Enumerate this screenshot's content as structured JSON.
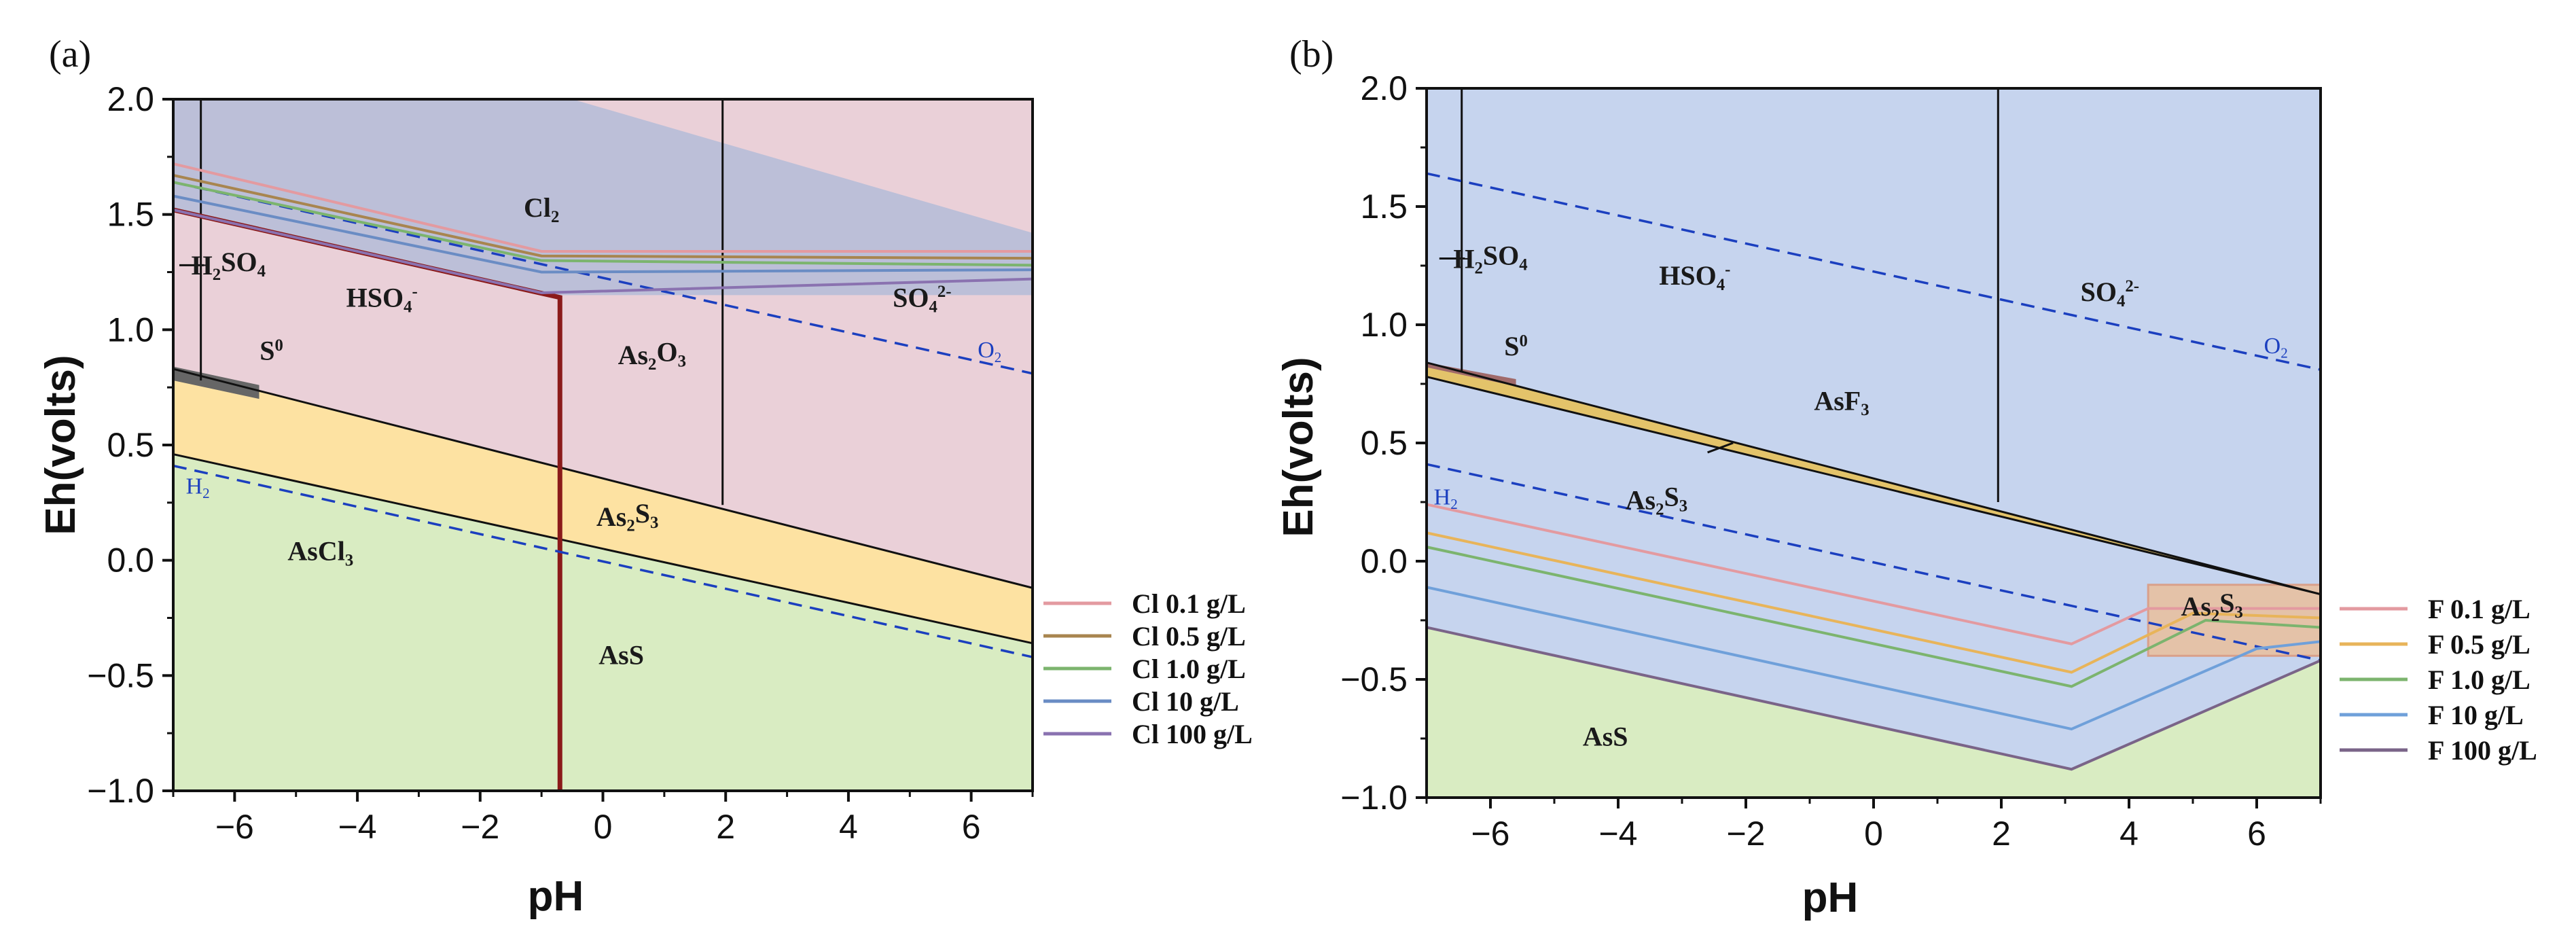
{
  "chart_data": [
    {
      "panel": "(a)",
      "type": "area",
      "title": "",
      "xlabel": "pH",
      "ylabel": "Eh(volts)",
      "xlim": [
        -7,
        7
      ],
      "ylim": [
        -1.0,
        2.0
      ],
      "xticks": [
        -6,
        -4,
        -2,
        0,
        2,
        4,
        6
      ],
      "yticks": [
        -1.0,
        -0.5,
        0.0,
        0.5,
        1.0,
        1.5,
        2.0
      ],
      "xtick_labels": [
        "−6",
        "−4",
        "−2",
        "0",
        "2",
        "4",
        "6"
      ],
      "ytick_labels": [
        "−1.0",
        "−0.5",
        "0.0",
        "0.5",
        "1.0",
        "1.5",
        "2.0"
      ],
      "regions": [
        {
          "label": "Cl",
          "sub": "2",
          "sup": "",
          "x": -1.0,
          "y": 1.49
        },
        {
          "label": "H",
          "sub": "2",
          "tail": "SO",
          "sub2": "4",
          "x": -6.1,
          "y": 1.24
        },
        {
          "label": "HSO",
          "sub": "4",
          "sup": "-",
          "x": -3.6,
          "y": 1.1
        },
        {
          "label": "S",
          "sup": "0",
          "x": -5.4,
          "y": 0.87
        },
        {
          "label": "As",
          "sub": "2",
          "tail": "O",
          "sub2": "3",
          "x": 0.8,
          "y": 0.85
        },
        {
          "label": "SO",
          "sub": "4",
          "sup": "2-",
          "x": 5.2,
          "y": 1.1
        },
        {
          "label": "As",
          "sub": "2",
          "tail": "S",
          "sub2": "3",
          "x": 0.4,
          "y": 0.15
        },
        {
          "label": "AsCl",
          "sub": "3",
          "x": -4.6,
          "y": -0.0,
          "color": "#b22222"
        },
        {
          "label": "AsS",
          "x": 0.3,
          "y": -0.45
        }
      ],
      "line_labels": [
        {
          "label": "O",
          "sub": "2",
          "x": 6.3,
          "y": 0.88
        },
        {
          "label": "H",
          "sub": "2",
          "x": -6.6,
          "y": 0.29
        }
      ],
      "legend": [
        "Cl 0.1 g/L",
        "Cl 0.5 g/L",
        "Cl 1.0 g/L",
        "Cl 10 g/L",
        "Cl 100 g/L"
      ],
      "legend_colors": [
        "#e39aa0",
        "#a8854f",
        "#7cb46e",
        "#6a8cc4",
        "#8a72b0"
      ],
      "water_lines": {
        "O2": [
          [
            -7,
            1.64
          ],
          [
            7,
            0.81
          ]
        ],
        "H2": [
          [
            -7,
            0.41
          ],
          [
            7,
            -0.42
          ]
        ]
      },
      "boundaries": {
        "h2so4_hso4_pH": -6.55,
        "hso4_so4_pH": 1.95,
        "ascl3_pH": -0.7,
        "upper_sulfide_line": [
          [
            -7,
            0.83
          ],
          [
            7,
            -0.12
          ]
        ],
        "lower_sulfide_line": [
          [
            -7,
            0.46
          ],
          [
            7,
            -0.36
          ]
        ],
        "s0_band": [
          [
            -7,
            0.84
          ],
          [
            -7,
            0.78
          ],
          [
            -5.6,
            0.7
          ],
          [
            -5.6,
            0.76
          ]
        ],
        "cl2_band": [
          [
            -7,
            2.0
          ],
          [
            -0.5,
            2.0
          ],
          [
            7,
            1.42
          ],
          [
            7,
            1.15
          ],
          [
            -0.8,
            1.15
          ],
          [
            -7,
            1.52
          ]
        ],
        "ascl3_upper": [
          [
            -7,
            1.52
          ],
          [
            -0.7,
            1.14
          ]
        ]
      },
      "series": [
        {
          "name": "Cl 0.1 g/L",
          "values": [
            [
              -7,
              1.72
            ],
            [
              -1.0,
              1.34
            ],
            [
              7,
              1.34
            ]
          ]
        },
        {
          "name": "Cl 0.5 g/L",
          "values": [
            [
              -7,
              1.67
            ],
            [
              -1.0,
              1.32
            ],
            [
              7,
              1.31
            ]
          ]
        },
        {
          "name": "Cl 1.0 g/L",
          "values": [
            [
              -7,
              1.64
            ],
            [
              -1.0,
              1.3
            ],
            [
              7,
              1.28
            ]
          ]
        },
        {
          "name": "Cl 10 g/L",
          "values": [
            [
              -7,
              1.58
            ],
            [
              -1.0,
              1.25
            ],
            [
              7,
              1.26
            ]
          ]
        },
        {
          "name": "Cl 100 g/L",
          "values": [
            [
              -7,
              1.52
            ],
            [
              -1.0,
              1.16
            ],
            [
              7,
              1.22
            ]
          ]
        }
      ]
    },
    {
      "panel": "(b)",
      "type": "area",
      "title": "",
      "xlabel": "pH",
      "ylabel": "Eh(volts)",
      "xlim": [
        -7,
        7
      ],
      "ylim": [
        -1.0,
        2.0
      ],
      "xticks": [
        -6,
        -4,
        -2,
        0,
        2,
        4,
        6
      ],
      "yticks": [
        -1.0,
        -0.5,
        0.0,
        0.5,
        1.0,
        1.5,
        2.0
      ],
      "xtick_labels": [
        "−6",
        "−4",
        "−2",
        "0",
        "2",
        "4",
        "6"
      ],
      "ytick_labels": [
        "−1.0",
        "−0.5",
        "0.0",
        "0.5",
        "1.0",
        "1.5",
        "2.0"
      ],
      "regions": [
        {
          "label": "H",
          "sub": "2",
          "tail": "SO",
          "sub2": "4",
          "x": -6.0,
          "y": 1.24
        },
        {
          "label": "HSO",
          "sub": "4",
          "sup": "-",
          "x": -2.8,
          "y": 1.17
        },
        {
          "label": "SO",
          "sub": "4",
          "sup": "2-",
          "x": 3.7,
          "y": 1.1
        },
        {
          "label": "S",
          "sup": "0",
          "x": -5.6,
          "y": 0.87
        },
        {
          "label": "AsF",
          "sub": "3",
          "x": -0.5,
          "y": 0.64
        },
        {
          "label": "As",
          "sub": "2",
          "tail": "S",
          "sub2": "3",
          "x": -3.4,
          "y": 0.22
        },
        {
          "label": "As",
          "sub": "2",
          "tail": "S",
          "sub2": "3",
          "x": 5.3,
          "y": -0.23
        },
        {
          "label": "AsS",
          "x": -4.2,
          "y": -0.78
        }
      ],
      "line_labels": [
        {
          "label": "O",
          "sub": "2",
          "x": 6.3,
          "y": 0.88
        },
        {
          "label": "H",
          "sub": "2",
          "x": -6.7,
          "y": 0.24
        }
      ],
      "legend": [
        "F 0.1 g/L",
        "F 0.5 g/L",
        "F 1.0 g/L",
        "F 10 g/L",
        "F 100 g/L"
      ],
      "legend_colors": [
        "#e39aa0",
        "#e8b45a",
        "#7cb46e",
        "#6fa0da",
        "#7a6488"
      ],
      "water_lines": {
        "O2": [
          [
            -7,
            1.64
          ],
          [
            7,
            0.81
          ]
        ],
        "H2": [
          [
            -7,
            0.41
          ],
          [
            7,
            -0.42
          ]
        ]
      },
      "boundaries": {
        "h2so4_hso4_pH": -6.45,
        "hso4_so4_pH": 1.95,
        "upper_sulfide_line": [
          [
            -7,
            0.84
          ],
          [
            7,
            -0.14
          ]
        ],
        "lower_sulfide_line": [
          [
            -7,
            0.68
          ],
          [
            7,
            -0.14
          ]
        ],
        "as2s3_band": [
          [
            -7,
            0.84
          ],
          [
            7,
            -0.14
          ],
          [
            -7,
            0.78
          ]
        ],
        "ass_band_top": [
          [
            -7,
            -0.28
          ],
          [
            3.1,
            -0.88
          ],
          [
            7,
            -0.42
          ]
        ],
        "as2s3_box": [
          [
            4.3,
            -0.1
          ],
          [
            7,
            -0.1
          ],
          [
            7,
            -0.4
          ],
          [
            4.3,
            -0.4
          ]
        ]
      },
      "series": [
        {
          "name": "F 0.1 g/L",
          "values": [
            [
              -7,
              0.24
            ],
            [
              3.1,
              -0.35
            ],
            [
              4.3,
              -0.2
            ],
            [
              7,
              -0.2
            ]
          ]
        },
        {
          "name": "F 0.5 g/L",
          "values": [
            [
              -7,
              0.12
            ],
            [
              3.1,
              -0.47
            ],
            [
              5.0,
              -0.22
            ],
            [
              7,
              -0.24
            ]
          ]
        },
        {
          "name": "F 1.0 g/L",
          "values": [
            [
              -7,
              0.06
            ],
            [
              3.1,
              -0.53
            ],
            [
              5.2,
              -0.25
            ],
            [
              7,
              -0.28
            ]
          ]
        },
        {
          "name": "F 10 g/L",
          "values": [
            [
              -7,
              -0.11
            ],
            [
              3.1,
              -0.71
            ],
            [
              6.0,
              -0.37
            ],
            [
              7,
              -0.34
            ]
          ]
        },
        {
          "name": "F 100 g/L",
          "values": [
            [
              -7,
              -0.28
            ],
            [
              3.1,
              -0.88
            ],
            [
              7,
              -0.42
            ]
          ]
        }
      ]
    }
  ]
}
